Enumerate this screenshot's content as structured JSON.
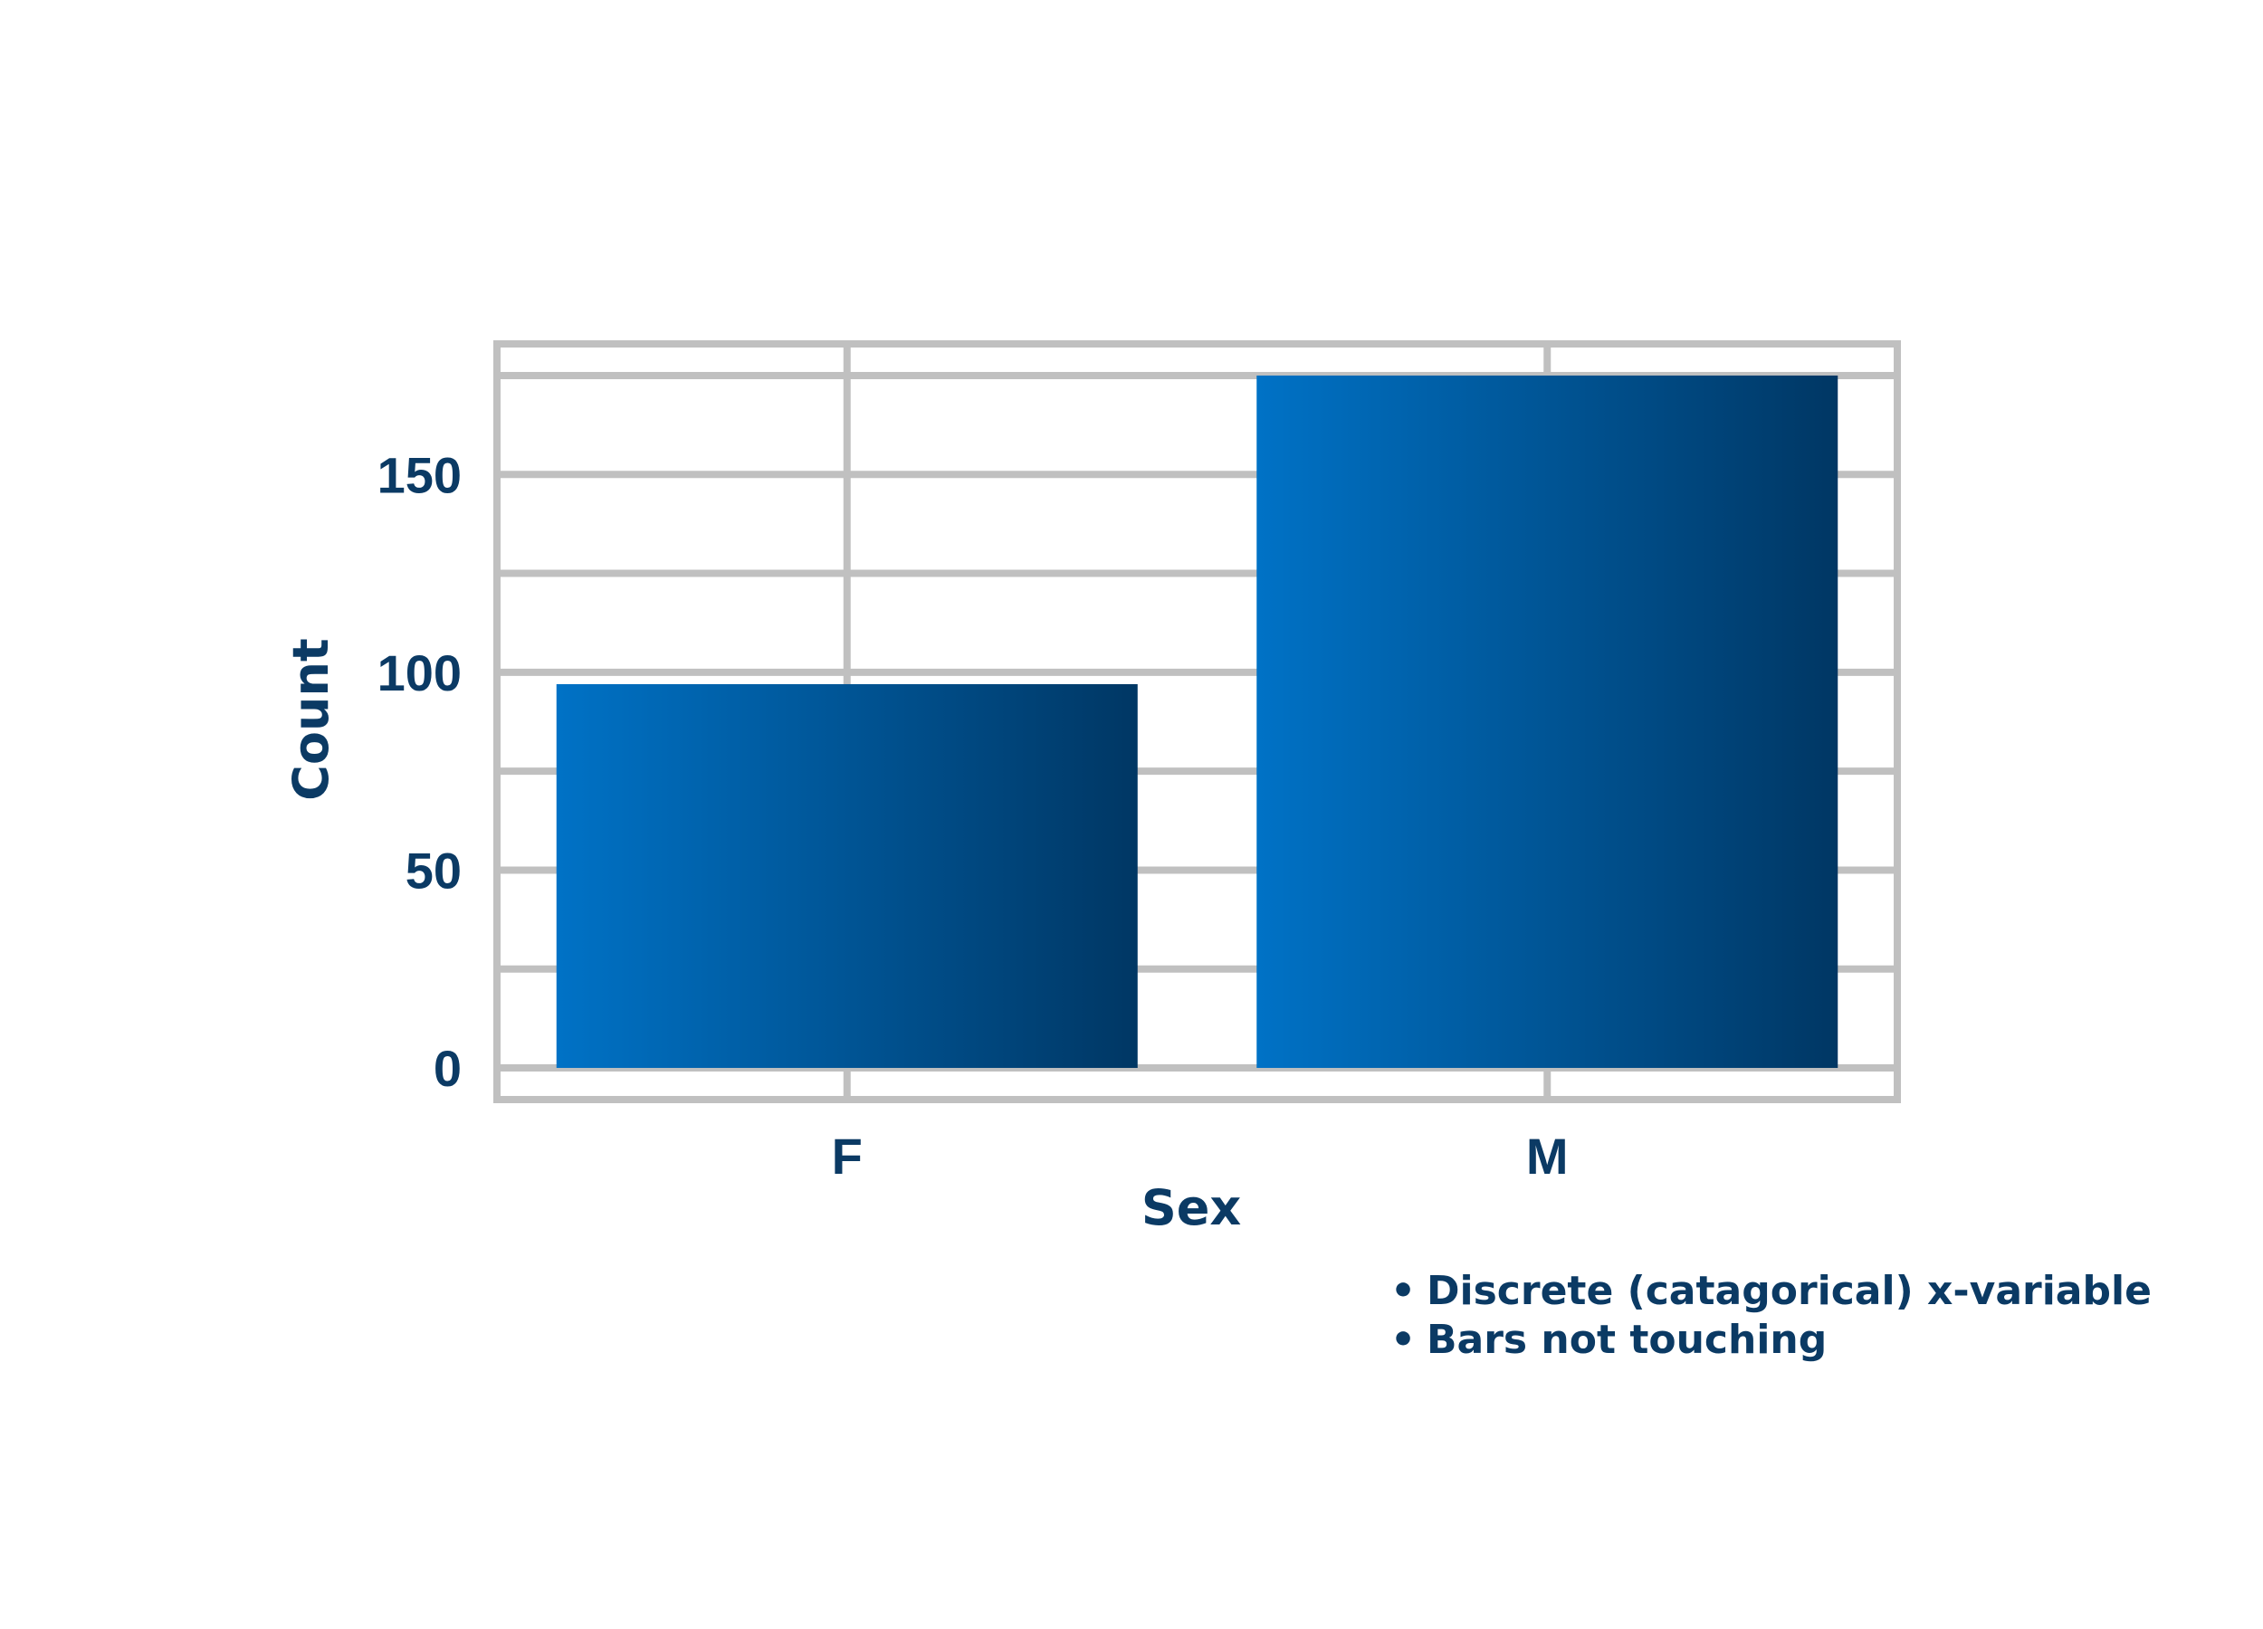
{
  "colors": {
    "text": "#0b3a64",
    "grid": "#c0c0c0",
    "bar_light": "#0072c6",
    "bar_dark": "#003764"
  },
  "chart_data": {
    "type": "bar",
    "categories": [
      "F",
      "M"
    ],
    "values": [
      97,
      175
    ],
    "title": "",
    "xlabel": "Sex",
    "ylabel": "Count",
    "ylim": [
      -8,
      183
    ],
    "yticks": [
      0,
      50,
      100,
      150
    ],
    "grid": true,
    "legend": "none"
  },
  "notes": [
    "Discrete (catagorical) x-variable",
    "Bars not touching"
  ]
}
